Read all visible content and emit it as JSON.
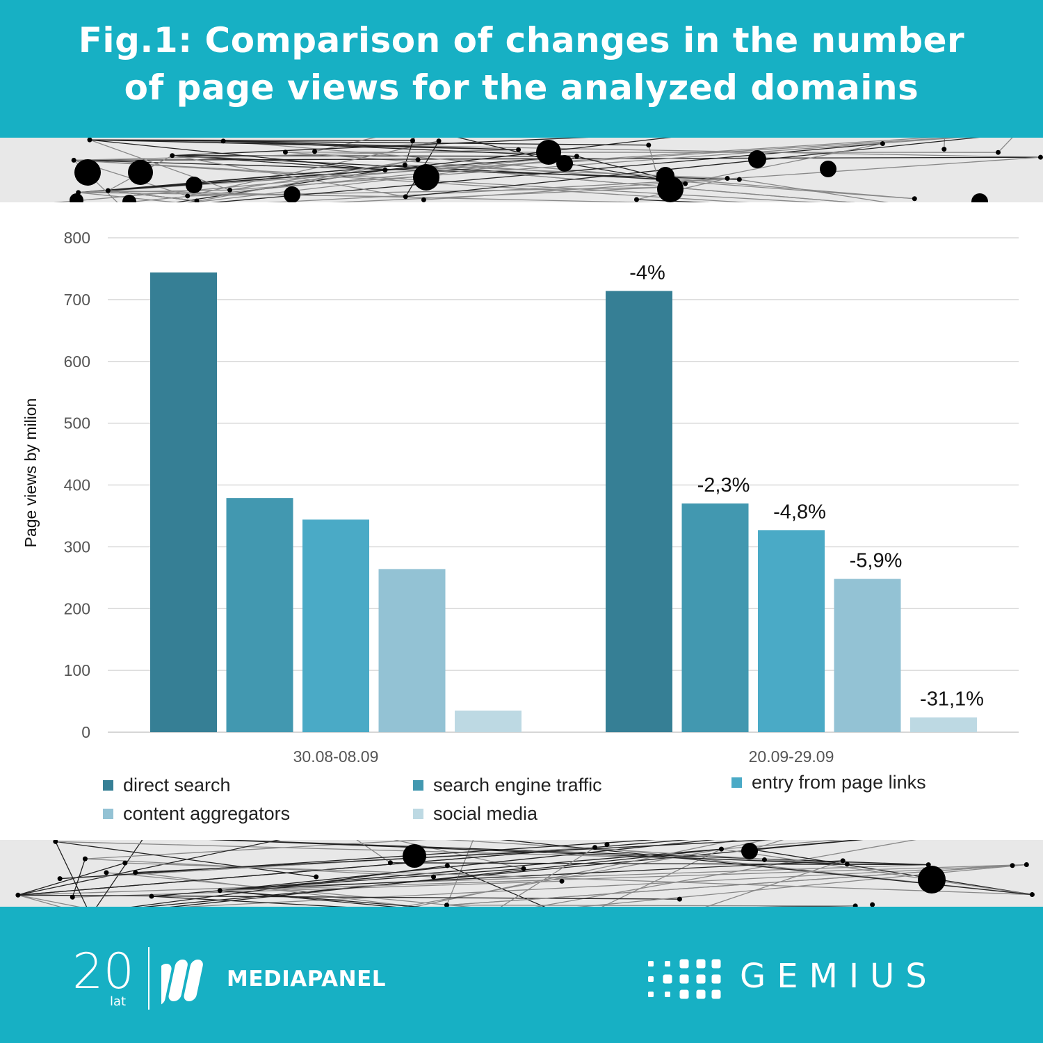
{
  "header": {
    "title_line1": "Fig.1: Comparison of changes in the number",
    "title_line2": "of page views for the analyzed domains"
  },
  "colors": {
    "banner": "#17b0c4",
    "series": [
      "#367f95",
      "#4298b0",
      "#4aaac6",
      "#93c2d4",
      "#bdd9e3"
    ]
  },
  "chart_data": {
    "type": "bar",
    "title": "",
    "xlabel": "",
    "ylabel": "Page views by milion",
    "ylim": [
      0,
      800
    ],
    "yticks": [
      0,
      100,
      200,
      300,
      400,
      500,
      600,
      700,
      800
    ],
    "grid": true,
    "legend_position": "bottom",
    "categories": [
      "30.08-08.09",
      "20.09-29.09"
    ],
    "series": [
      {
        "name": "direct search",
        "values": [
          744,
          714
        ],
        "labels": [
          "",
          "-4%"
        ]
      },
      {
        "name": "search engine traffic",
        "values": [
          379,
          370
        ],
        "labels": [
          "",
          "-2,3%"
        ]
      },
      {
        "name": "entry from page links",
        "values": [
          344,
          327
        ],
        "labels": [
          "",
          "-4,8%"
        ]
      },
      {
        "name": "content aggregators",
        "values": [
          264,
          248
        ],
        "labels": [
          "",
          "-5,9%"
        ]
      },
      {
        "name": "social media",
        "values": [
          35,
          24
        ],
        "labels": [
          "",
          "-31,1%"
        ]
      }
    ]
  },
  "footer": {
    "logo_number": "20",
    "logo_sub": "lat",
    "mediapanel": "MEDIAPANEL",
    "gemius": "GEMIUS"
  }
}
